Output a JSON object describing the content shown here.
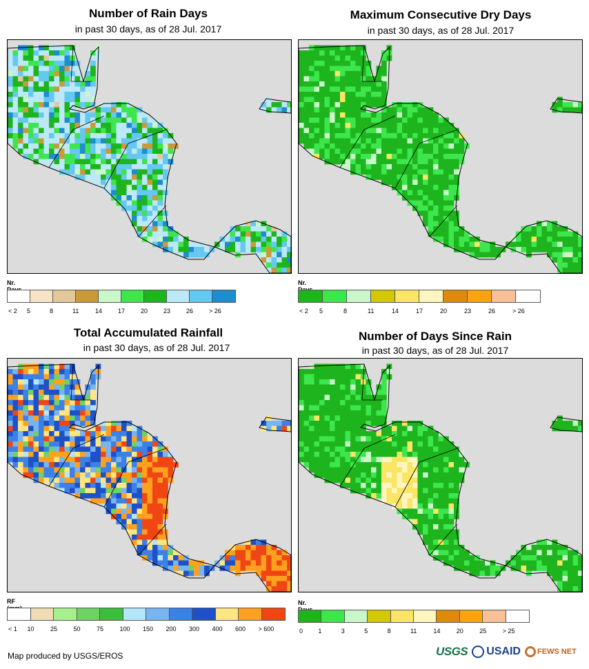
{
  "panels": [
    {
      "title": "Number of Rain Days",
      "subtitle": "in past 30 days, as of 28 Jul. 2017",
      "legend_title": "Nr. Days",
      "legend_colors": [
        "#ffffff",
        "#f7e4c6",
        "#e3c89a",
        "#c99a3c",
        "#c9f7c9",
        "#3ce64c",
        "#1eb41e",
        "#bde8f7",
        "#64c8f0",
        "#1e8ccd"
      ],
      "legend_labels": [
        "< 2",
        "5",
        "8",
        "11",
        "14",
        "17",
        "20",
        "23",
        "26",
        "> 26"
      ],
      "palette": [
        "#1eb41e",
        "#3ce64c",
        "#bde8f7",
        "#64c8f0",
        "#1e8ccd",
        "#c9f7c9",
        "#c99a3c",
        "#e3c89a"
      ],
      "weights": [
        0.18,
        0.12,
        0.34,
        0.22,
        0.06,
        0.03,
        0.03,
        0.02
      ]
    },
    {
      "title": "Maximum Consecutive Dry Days",
      "subtitle": "in past 30 days, as of 28 Jul. 2017",
      "legend_title": "Nr. Days",
      "legend_colors": [
        "#1eb41e",
        "#3ce64c",
        "#c9f7c9",
        "#d4c800",
        "#fae664",
        "#fff5c0",
        "#dc8c0a",
        "#faa50a",
        "#f8c096",
        "#ffffff"
      ],
      "legend_labels": [
        "< 2",
        "5",
        "8",
        "11",
        "14",
        "17",
        "20",
        "23",
        "26",
        "> 26"
      ],
      "palette": [
        "#1eb41e",
        "#3ce64c",
        "#c9f7c9",
        "#fae664"
      ],
      "weights": [
        0.62,
        0.32,
        0.05,
        0.01
      ]
    },
    {
      "title": "Total Accumulated Rainfall",
      "subtitle": "in past 30 days, as of 28 Jul. 2017",
      "legend_title": "RF (mm)",
      "legend_colors": [
        "#ffffff",
        "#f0dcb4",
        "#a5f08c",
        "#6ed264",
        "#3cbe3c",
        "#b4e6fa",
        "#78b4f0",
        "#3c82e6",
        "#1e50c8",
        "#ffe682",
        "#ffa01e",
        "#f04614"
      ],
      "legend_labels": [
        "< 1",
        "10",
        "25",
        "50",
        "75",
        "100",
        "150",
        "200",
        "300",
        "400",
        "600",
        "> 600"
      ],
      "palette": [
        "#1e50c8",
        "#3c82e6",
        "#78b4f0",
        "#ffe682",
        "#ffa01e",
        "#f04614",
        "#6ed264",
        "#b4e6fa"
      ],
      "weights": [
        0.24,
        0.24,
        0.12,
        0.12,
        0.12,
        0.06,
        0.06,
        0.04
      ]
    },
    {
      "title": "Number of Days Since Rain",
      "subtitle": "in past 30 days, as of 28 Jul. 2017",
      "legend_title": "Nr. Days",
      "legend_colors": [
        "#1eb41e",
        "#3ce64c",
        "#c9f7c9",
        "#d4c800",
        "#fae664",
        "#fff5c0",
        "#dc8c0a",
        "#faa50a",
        "#f8c096",
        "#ffffff"
      ],
      "legend_labels": [
        "0",
        "1",
        "3",
        "5",
        "8",
        "11",
        "14",
        "20",
        "25",
        "> 25"
      ],
      "palette": [
        "#1eb41e",
        "#3ce64c",
        "#c9f7c9",
        "#fae664"
      ],
      "weights": [
        0.7,
        0.22,
        0.05,
        0.03
      ]
    }
  ],
  "footer": {
    "credit": "Map produced by USGS/EROS",
    "logos": [
      "USGS",
      "USAID",
      "FEWS NET"
    ]
  }
}
